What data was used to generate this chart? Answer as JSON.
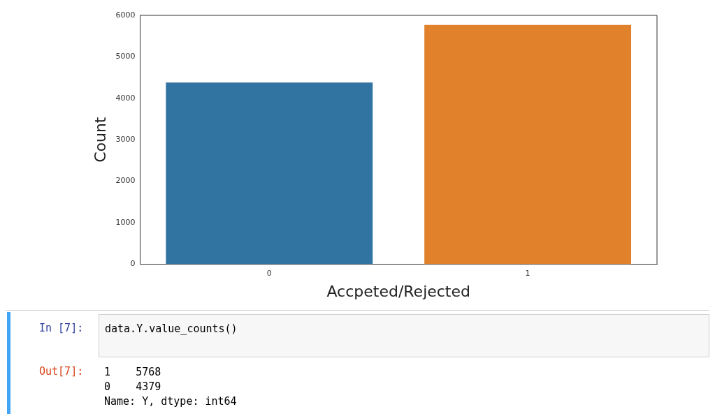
{
  "chart_data": {
    "type": "bar",
    "xlabel": "Accpeted/Rejected",
    "ylabel": "Count",
    "categories": [
      "0",
      "1"
    ],
    "values": [
      4379,
      5768
    ],
    "colors": [
      "#3274a1",
      "#e1812c"
    ],
    "ylim": [
      0,
      6000
    ],
    "yticks": [
      0,
      1000,
      2000,
      3000,
      4000,
      5000,
      6000
    ],
    "grid": false,
    "legend": false,
    "annotations": [
      "In [7]:",
      "data.Y.value_counts()",
      "Out[7]:",
      "1    5768",
      "0    4379",
      "Name: Y, dtype: int64"
    ]
  }
}
